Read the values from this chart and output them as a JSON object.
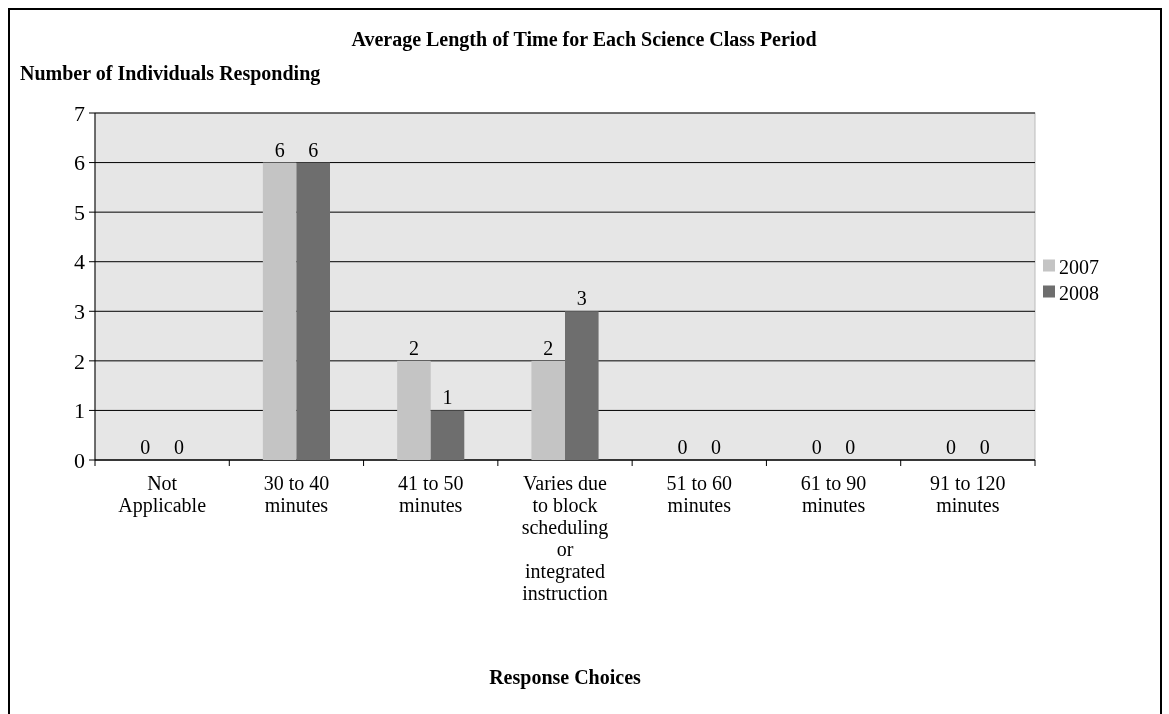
{
  "chart_data": {
    "type": "bar",
    "title": "Average Length of Time for Each Science Class Period",
    "ylabel": "Number of Individuals Responding",
    "xlabel": "Response Choices",
    "categories": [
      "Not Applicable",
      "30 to 40 minutes",
      "41 to 50 minutes",
      "Varies due to block scheduling or integrated instruction",
      "51 to 60 minutes",
      "61 to 90 minutes",
      "91 to 120 minutes"
    ],
    "series": [
      {
        "name": "2007",
        "color": "#c4c4c4",
        "values": [
          0,
          6,
          2,
          2,
          0,
          0,
          0
        ]
      },
      {
        "name": "2008",
        "color": "#6e6e6e",
        "values": [
          0,
          6,
          1,
          3,
          0,
          0,
          0
        ]
      }
    ],
    "ylim": [
      0,
      7
    ],
    "yticks": [
      0,
      1,
      2,
      3,
      4,
      5,
      6,
      7
    ],
    "grid": "y",
    "legend": "right",
    "data_labels": true
  }
}
